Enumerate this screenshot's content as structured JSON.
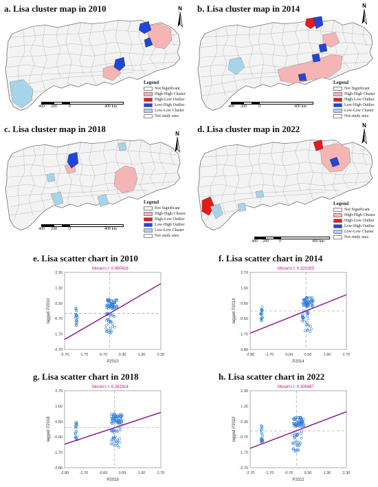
{
  "maps": [
    {
      "title": "a. Lisa cluster map in 2010",
      "north": "N",
      "legend": {
        "title": "Legend",
        "items": [
          "Not Significant",
          "High-High Cluster",
          "High-Low Outlier",
          "Low-High Outlier",
          "Low-Low Cluster",
          "Not study area"
        ]
      },
      "scale": [
        "400",
        "200",
        "0",
        "400 km"
      ]
    },
    {
      "title": "b. Lisa cluster map in 2014",
      "north": "N",
      "legend": {
        "title": "Legend",
        "items": [
          "Not Significant",
          "High-High Cluster",
          "High-Low Outlier",
          "Low-High Outlier",
          "Low-Low Cluster",
          "Not study area"
        ]
      },
      "scale": [
        "400",
        "200",
        "0",
        "400 km"
      ]
    },
    {
      "title": "c. Lisa cluster map in 2018",
      "north": "N",
      "legend": {
        "title": "Legend",
        "items": [
          "Not Significant",
          "High-High Cluster",
          "High-Low Outlier",
          "Low-High Outlier",
          "Low-Low Cluster",
          "Not study area"
        ]
      },
      "scale": [
        "400",
        "200",
        "0",
        "400 km"
      ]
    },
    {
      "title": "d. Lisa cluster map in 2022",
      "north": "N",
      "legend": {
        "title": "Legend",
        "items": [
          "Not Significant",
          "High-High Cluster",
          "High-Low Outlier",
          "Low-High Outlier",
          "Low-Low Cluster",
          "Not study area"
        ]
      },
      "scale": [
        "400",
        "200",
        "0",
        "400 km"
      ]
    }
  ],
  "legend_colors": [
    "#f4f4f4",
    "#f5b5b5",
    "#e51b1b",
    "#2046d8",
    "#a8d4ea",
    "#ffffff"
  ],
  "scatters": [
    {
      "title": "e. Lisa scatter chart in 2010",
      "moran": "Moran's I: 0.490416",
      "xlabel": "P2010",
      "ylabel": "lagged P2010",
      "xticks": [
        "-2.70",
        "-1.70",
        "-0.70",
        "0.30",
        "1.30",
        "2.30"
      ],
      "yticks": [
        "2.30",
        "1.30",
        "0.30",
        "-0.70",
        "-1.70",
        "-2.70"
      ]
    },
    {
      "title": "f. Lisa scatter chart in 2014",
      "moran": "Moran's I: 0.320293",
      "xlabel": "P2014",
      "ylabel": "lagged P2014",
      "xticks": [
        "-2.80",
        "-1.70",
        "-0.60",
        "0.50",
        "1.60",
        "2.70"
      ],
      "yticks": [
        "2.70",
        "1.60",
        "0.50",
        "-0.60",
        "-1.70",
        "-2.80"
      ]
    },
    {
      "title": "g. Lisa scatter chart in 2018",
      "moran": "Moran's I: 0.263314",
      "xlabel": "P2018",
      "ylabel": "lagged P2018",
      "xticks": [
        "-2.80",
        "-1.70",
        "-0.60",
        "0.50",
        "1.60",
        "2.70"
      ],
      "yticks": [
        "2.70",
        "1.60",
        "0.50",
        "-0.60",
        "-1.70",
        "-2.80"
      ]
    },
    {
      "title": "h. Lisa scatter chart in 2022",
      "moran": "Moran's I: 0.306487",
      "xlabel": "P2022",
      "ylabel": "lagged P2022",
      "xticks": [
        "-2.70",
        "-1.70",
        "-0.70",
        "0.30",
        "1.30",
        "2.30"
      ],
      "yticks": [
        "2.30",
        "1.30",
        "0.30",
        "-0.70",
        "-1.70",
        "-2.70"
      ]
    }
  ]
}
